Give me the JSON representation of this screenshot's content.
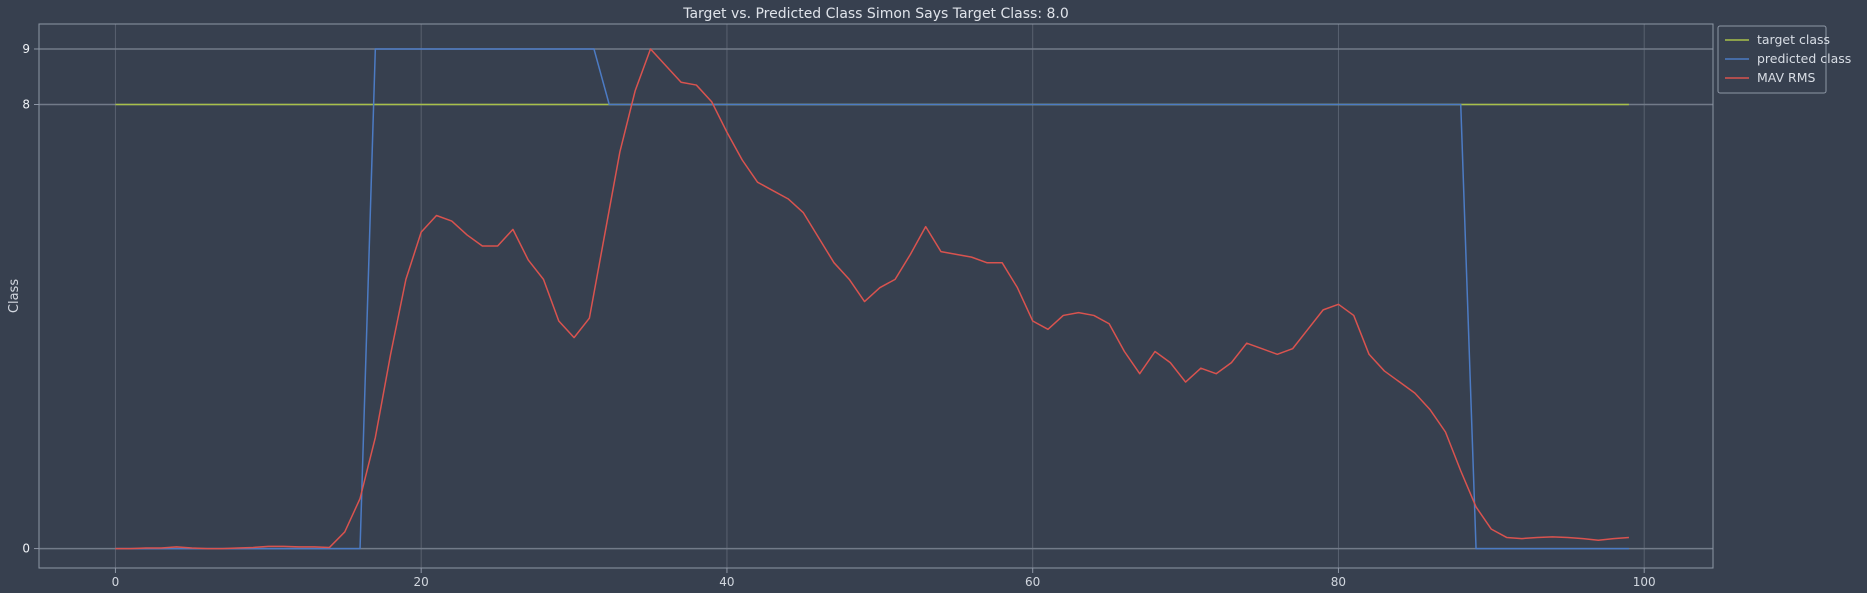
{
  "chart_data": {
    "type": "line",
    "title": "Target vs. Predicted Class Simon Says Target Class: 8.0",
    "xlabel": "",
    "ylabel": "Class",
    "xlim": [
      -5,
      104.5
    ],
    "ylim": [
      -0.35,
      9.45
    ],
    "xticks": [
      0,
      20,
      40,
      60,
      80,
      100
    ],
    "yticks": [
      0,
      8,
      9
    ],
    "grid": true,
    "legend_position": "top-right",
    "series": [
      {
        "name": "target class",
        "color": "#a8c04a",
        "x": [
          0,
          99
        ],
        "y": [
          8,
          8
        ]
      },
      {
        "name": "predicted class",
        "color": "#4c7bc4",
        "x": [
          0,
          16,
          17,
          31.3,
          32.3,
          88,
          89,
          99
        ],
        "y": [
          0,
          0,
          9,
          9,
          8,
          8,
          0,
          0
        ]
      },
      {
        "name": "MAV RMS",
        "color": "#d9534f",
        "x": [
          0,
          1,
          2,
          3,
          4,
          5,
          6,
          7,
          8,
          9,
          10,
          11,
          12,
          13,
          14,
          15,
          16,
          17,
          18,
          19,
          20,
          21,
          22,
          23,
          24,
          25,
          26,
          27,
          28,
          29,
          30,
          31,
          32,
          33,
          34,
          35,
          36,
          37,
          38,
          39,
          40,
          41,
          42,
          43,
          44,
          45,
          46,
          47,
          48,
          49,
          50,
          51,
          52,
          53,
          54,
          55,
          56,
          57,
          58,
          59,
          60,
          61,
          62,
          63,
          64,
          65,
          66,
          67,
          68,
          69,
          70,
          71,
          72,
          73,
          74,
          75,
          76,
          77,
          78,
          79,
          80,
          81,
          82,
          83,
          84,
          85,
          86,
          87,
          88,
          89,
          90,
          91,
          92,
          93,
          94,
          95,
          96,
          97,
          98,
          99
        ],
        "y": [
          0.0,
          0.0,
          0.01,
          0.01,
          0.03,
          0.01,
          0.0,
          0.0,
          0.01,
          0.02,
          0.04,
          0.04,
          0.03,
          0.03,
          0.02,
          0.3,
          0.9,
          2.0,
          3.5,
          4.85,
          5.7,
          6.0,
          5.9,
          5.65,
          5.45,
          5.45,
          5.75,
          5.2,
          4.85,
          4.1,
          3.8,
          4.15,
          5.65,
          7.15,
          8.25,
          9.0,
          8.7,
          8.4,
          8.35,
          8.05,
          7.5,
          7.0,
          6.6,
          6.45,
          6.3,
          6.05,
          5.6,
          5.15,
          4.85,
          4.45,
          4.7,
          4.85,
          5.3,
          5.8,
          5.35,
          5.3,
          5.25,
          5.15,
          5.15,
          4.7,
          4.1,
          3.95,
          4.2,
          4.25,
          4.2,
          4.05,
          3.55,
          3.15,
          3.55,
          3.35,
          3.0,
          3.25,
          3.15,
          3.35,
          3.7,
          3.6,
          3.5,
          3.6,
          3.95,
          4.3,
          4.4,
          4.2,
          3.5,
          3.2,
          3.0,
          2.8,
          2.5,
          2.1,
          1.4,
          0.75,
          0.35,
          0.2,
          0.18,
          0.2,
          0.21,
          0.2,
          0.18,
          0.15,
          0.18,
          0.2
        ]
      }
    ]
  }
}
